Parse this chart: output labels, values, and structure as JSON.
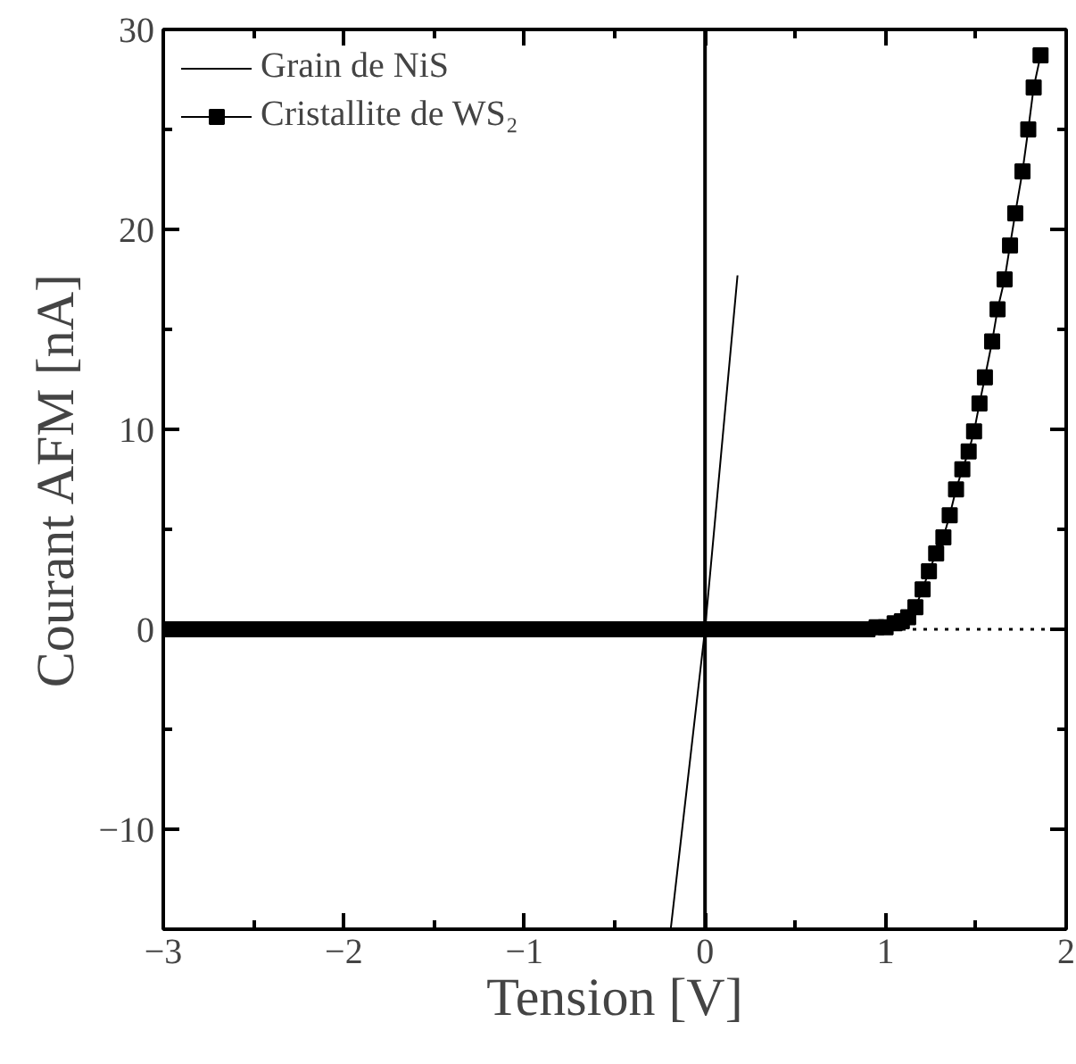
{
  "chart_data": {
    "type": "line",
    "xlabel": "Tension [V]",
    "ylabel": "Courant AFM [nA]",
    "xlim": [
      -3,
      2
    ],
    "ylim": [
      -15,
      30
    ],
    "xticks": [
      -3,
      -2,
      -1,
      0,
      1,
      2
    ],
    "yticks": [
      -10,
      0,
      10,
      20,
      30
    ],
    "grid": false,
    "legend": "top left",
    "ref_lines": [
      {
        "axis": "x",
        "value": 0,
        "line_style": "solid",
        "color": "#000000"
      },
      {
        "axis": "y",
        "value": 0,
        "line_style": "dotted",
        "color": "#000000"
      }
    ],
    "series": [
      {
        "name": "Grain de NiS",
        "color": "#000000",
        "marker": "none",
        "x": [
          -0.19,
          0,
          0.18
        ],
        "values": [
          -15,
          0,
          17.7
        ]
      },
      {
        "name": "Cristallite de WS₂",
        "color": "#000000",
        "marker": "square",
        "x": [
          -3.0,
          -2.95,
          -2.9,
          -2.85,
          -2.8,
          -2.75,
          -2.7,
          -2.65,
          -2.6,
          -2.55,
          -2.5,
          -2.45,
          -2.4,
          -2.35,
          -2.3,
          -2.25,
          -2.2,
          -2.15,
          -2.1,
          -2.05,
          -2.0,
          -1.95,
          -1.9,
          -1.85,
          -1.8,
          -1.75,
          -1.7,
          -1.65,
          -1.6,
          -1.55,
          -1.5,
          -1.45,
          -1.4,
          -1.35,
          -1.3,
          -1.25,
          -1.2,
          -1.15,
          -1.1,
          -1.05,
          -1.0,
          -0.95,
          -0.9,
          -0.85,
          -0.8,
          -0.75,
          -0.7,
          -0.65,
          -0.6,
          -0.55,
          -0.5,
          -0.45,
          -0.4,
          -0.35,
          -0.3,
          -0.25,
          -0.2,
          -0.15,
          -0.1,
          -0.05,
          0.0,
          0.05,
          0.1,
          0.15,
          0.2,
          0.25,
          0.3,
          0.35,
          0.4,
          0.45,
          0.5,
          0.55,
          0.6,
          0.65,
          0.7,
          0.75,
          0.8,
          0.85,
          0.9,
          0.95,
          1.0,
          1.05,
          1.09,
          1.125,
          1.165,
          1.205,
          1.24,
          1.28,
          1.32,
          1.355,
          1.39,
          1.425,
          1.46,
          1.49,
          1.52,
          1.55,
          1.59,
          1.62,
          1.659,
          1.689,
          1.718,
          1.758,
          1.79,
          1.82,
          1.858
        ],
        "values": [
          0,
          0,
          0,
          0,
          0,
          0,
          0,
          0,
          0,
          0,
          0,
          0,
          0,
          0,
          0,
          0,
          0,
          0,
          0,
          0,
          0,
          0,
          0,
          0,
          0,
          0,
          0,
          0,
          0,
          0,
          0,
          0,
          0,
          0,
          0,
          0,
          0,
          0,
          0,
          0,
          0,
          0,
          0,
          0,
          0,
          0,
          0,
          0,
          0,
          0,
          0,
          0,
          0,
          0,
          0,
          0,
          0,
          0,
          0,
          0,
          0,
          0,
          0,
          0,
          0,
          0,
          0,
          0,
          0,
          0,
          0,
          0,
          0,
          0,
          0,
          0,
          0,
          0,
          0,
          0.1,
          0.1,
          0.3,
          0.4,
          0.6,
          1.1,
          2.0,
          2.9,
          3.8,
          4.6,
          5.7,
          7.0,
          8.0,
          8.9,
          9.9,
          11.3,
          12.6,
          14.4,
          16.0,
          17.5,
          19.2,
          20.8,
          22.9,
          25.0,
          27.1,
          28.7
        ]
      }
    ]
  }
}
